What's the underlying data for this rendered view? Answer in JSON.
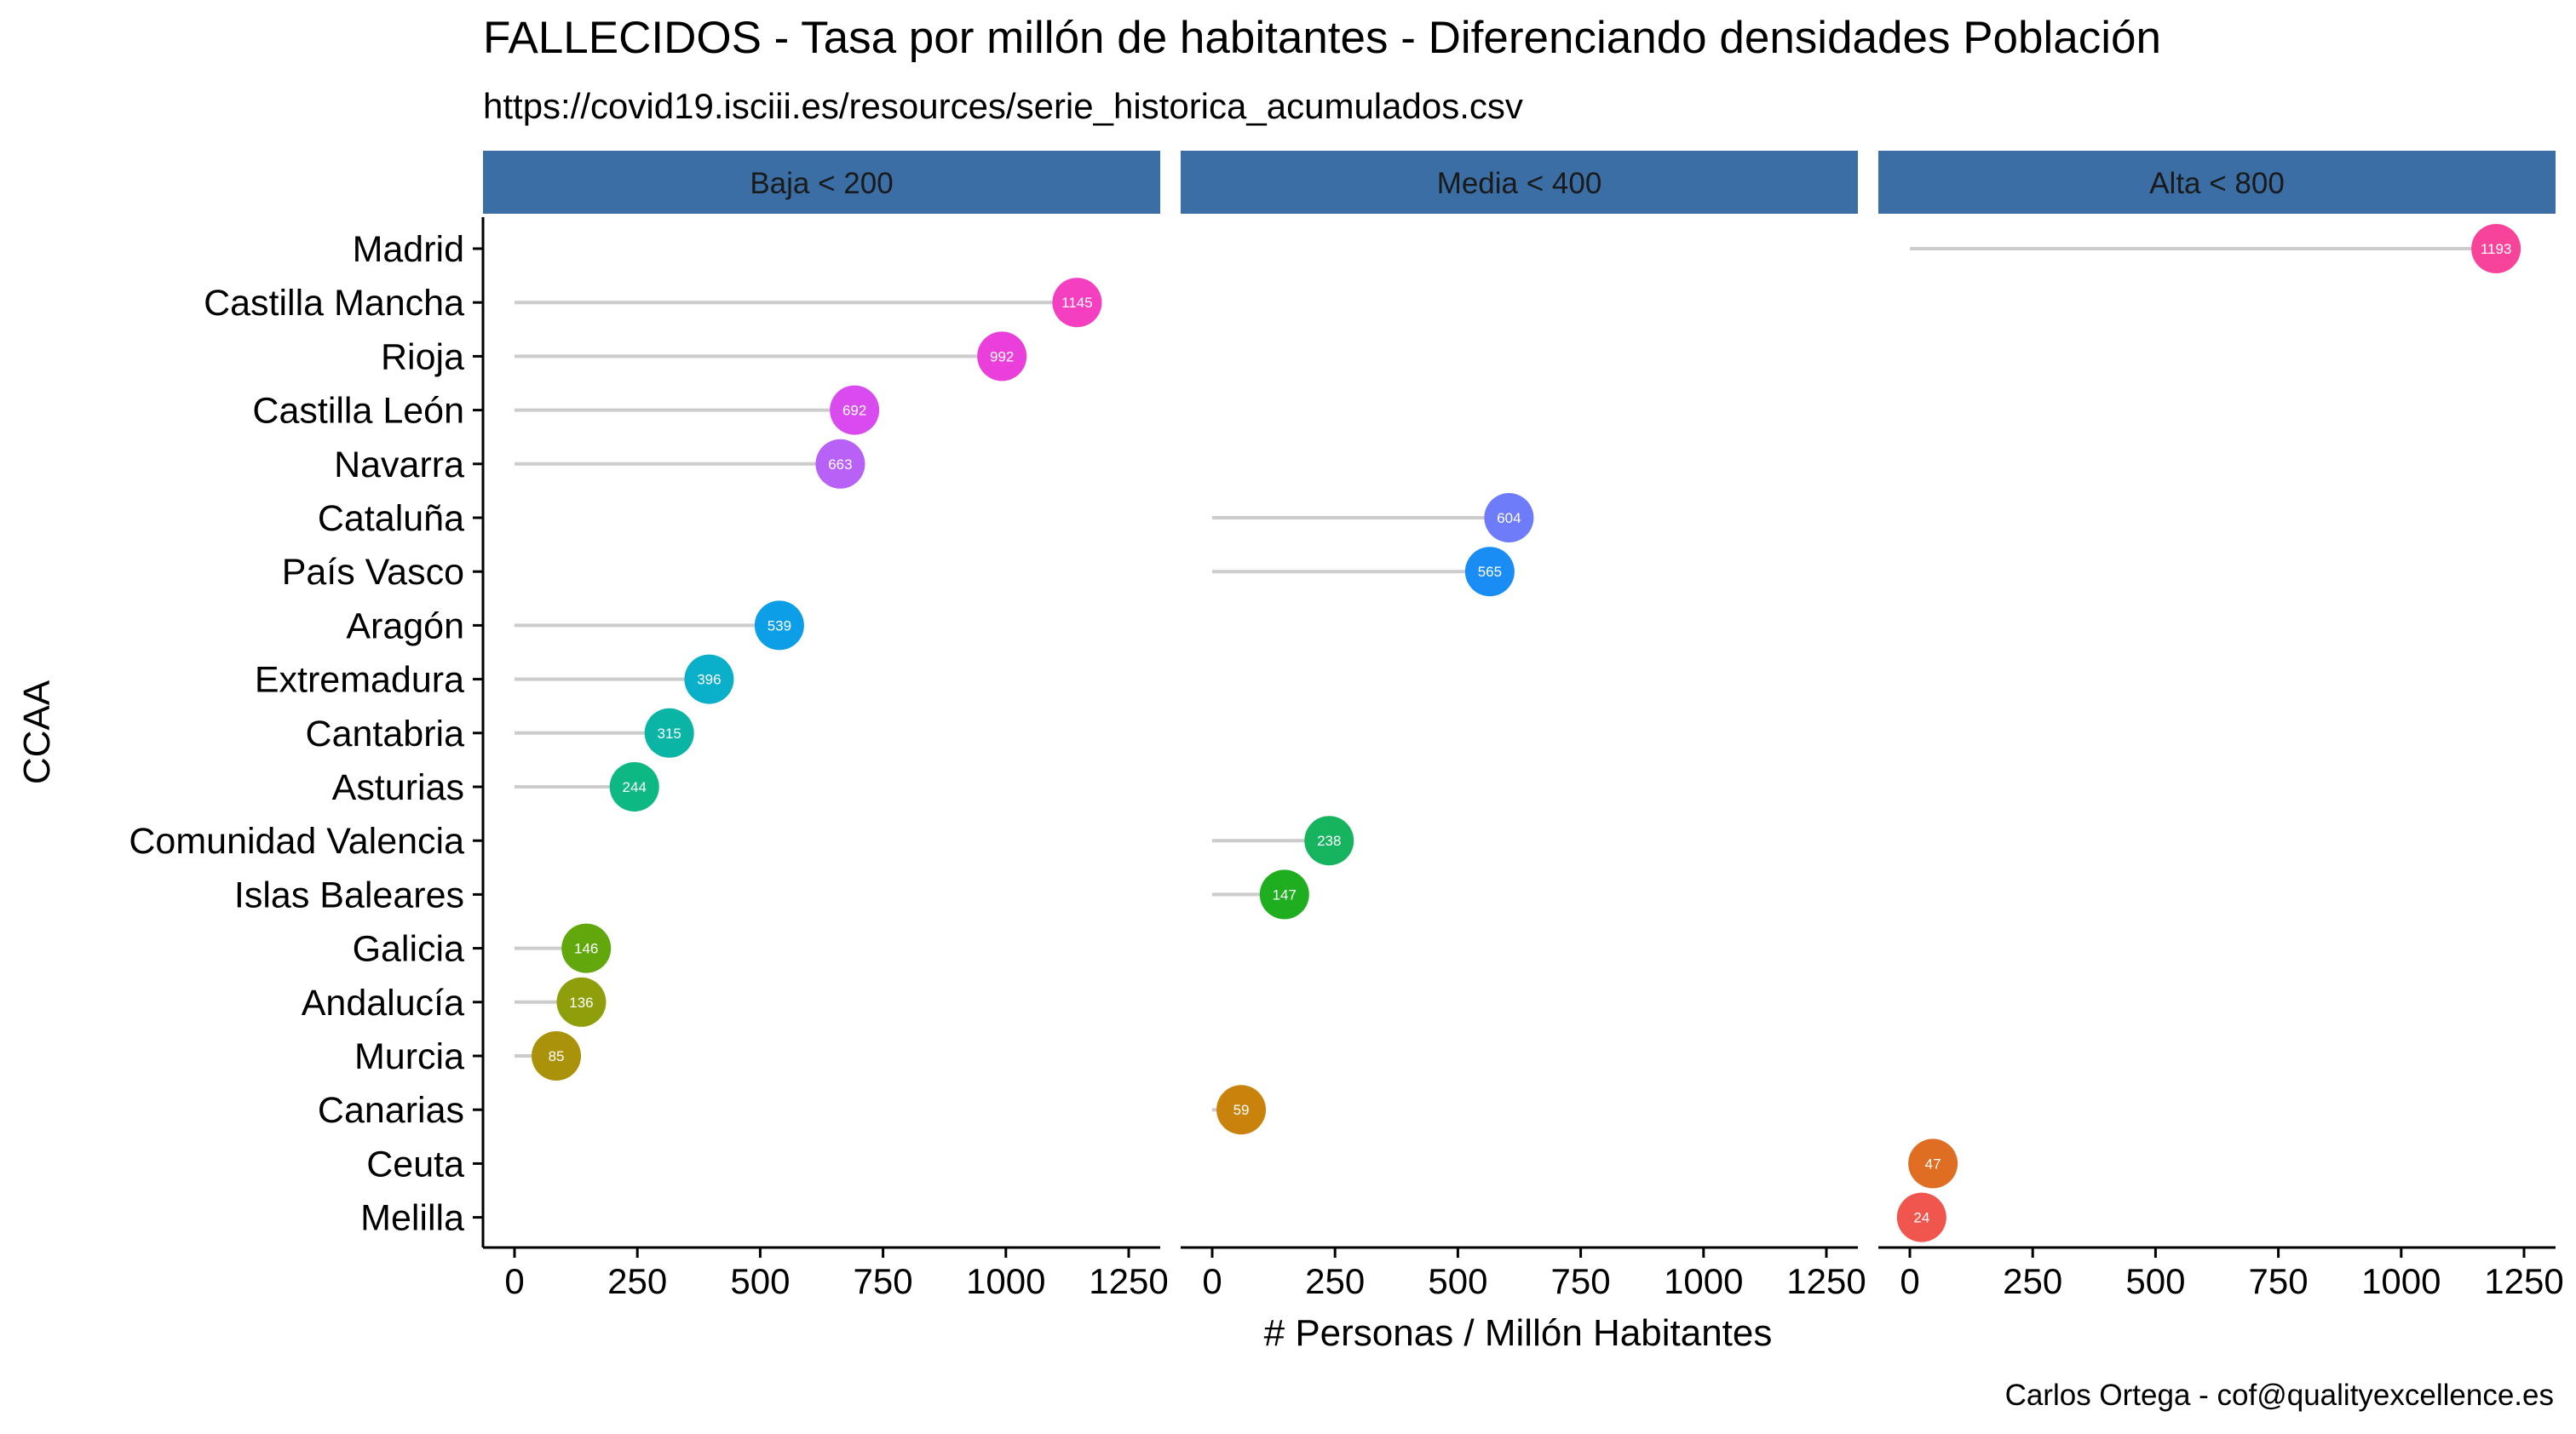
{
  "chart_data": {
    "type": "lollipop",
    "title": "FALLECIDOS - Tasa por millón de habitantes - Diferenciando densidades Población",
    "subtitle": "https://covid19.isciii.es/resources/serie_historica_acumulados.csv",
    "xlabel": "# Personas / Millón Habitantes",
    "ylabel": "CCAA",
    "caption": "Carlos Ortega - cof@qualityexcellence.es",
    "xlim": [
      0,
      1250
    ],
    "x_ticks": [
      0,
      250,
      500,
      750,
      1000,
      1250
    ],
    "panels": [
      "Baja < 200",
      "Media < 400",
      "Alta < 800"
    ],
    "categories": [
      "Madrid",
      "Castilla Mancha",
      "Rioja",
      "Castilla León",
      "Navarra",
      "Cataluña",
      "País Vasco",
      "Aragón",
      "Extremadura",
      "Cantabria",
      "Asturias",
      "Comunidad Valencia",
      "Islas Baleares",
      "Galicia",
      "Andalucía",
      "Murcia",
      "Canarias",
      "Ceuta",
      "Melilla"
    ],
    "points": [
      {
        "region": "Madrid",
        "panel": 2,
        "value": 1193,
        "color": "#F8439A"
      },
      {
        "region": "Castilla Mancha",
        "panel": 0,
        "value": 1145,
        "color": "#F43FC0"
      },
      {
        "region": "Rioja",
        "panel": 0,
        "value": 992,
        "color": "#EB3FDC"
      },
      {
        "region": "Castilla León",
        "panel": 0,
        "value": 692,
        "color": "#DA4BEF"
      },
      {
        "region": "Navarra",
        "panel": 0,
        "value": 663,
        "color": "#B761F7"
      },
      {
        "region": "Cataluña",
        "panel": 1,
        "value": 604,
        "color": "#6E7CFA"
      },
      {
        "region": "País Vasco",
        "panel": 1,
        "value": 565,
        "color": "#1A8DF5"
      },
      {
        "region": "Aragón",
        "panel": 0,
        "value": 539,
        "color": "#0C9EE6"
      },
      {
        "region": "Extremadura",
        "panel": 0,
        "value": 396,
        "color": "#0AAFC9"
      },
      {
        "region": "Cantabria",
        "panel": 0,
        "value": 315,
        "color": "#0AB5A5"
      },
      {
        "region": "Asturias",
        "panel": 0,
        "value": 244,
        "color": "#0DB883"
      },
      {
        "region": "Comunidad Valencia",
        "panel": 1,
        "value": 238,
        "color": "#16B45E"
      },
      {
        "region": "Islas Baleares",
        "panel": 1,
        "value": 147,
        "color": "#1FAE1F"
      },
      {
        "region": "Galicia",
        "panel": 0,
        "value": 146,
        "color": "#62A80D"
      },
      {
        "region": "Andalucía",
        "panel": 0,
        "value": 136,
        "color": "#8F9E0B"
      },
      {
        "region": "Murcia",
        "panel": 0,
        "value": 85,
        "color": "#AB920B"
      },
      {
        "region": "Canarias",
        "panel": 1,
        "value": 59,
        "color": "#C9830C"
      },
      {
        "region": "Ceuta",
        "panel": 2,
        "value": 47,
        "color": "#E06E22"
      },
      {
        "region": "Melilla",
        "panel": 2,
        "value": 24,
        "color": "#F0564D"
      }
    ],
    "strip_color": "#3A6EA5",
    "segment_color": "#cccccc",
    "grid": false
  }
}
